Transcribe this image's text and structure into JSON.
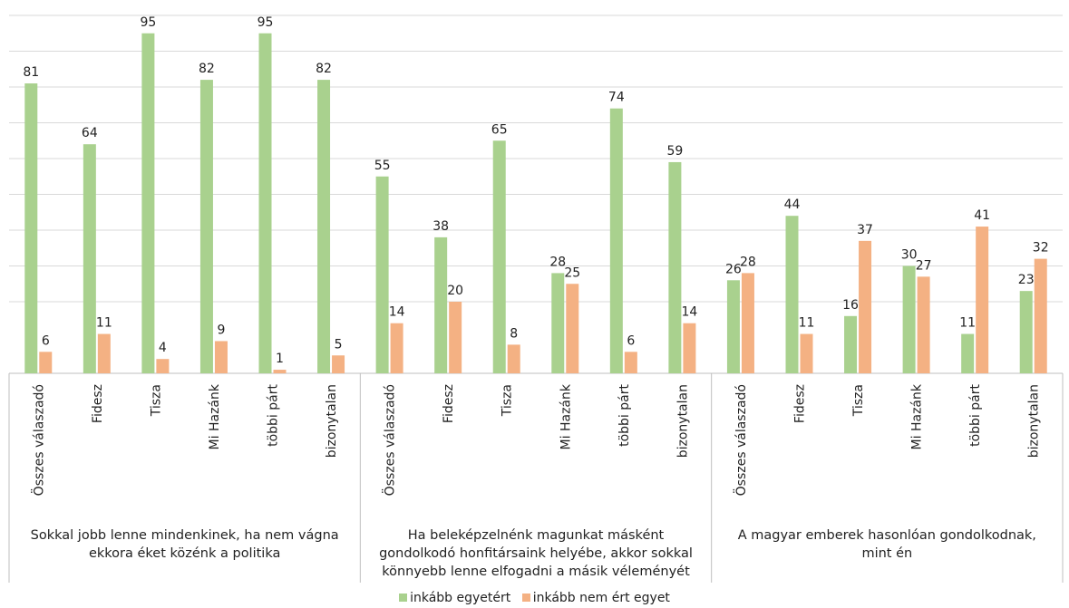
{
  "chart_data": {
    "type": "bar",
    "groups": [
      {
        "label_lines": [
          "Sokkal jobb lenne mindenkinek, ha nem vágna",
          "ekkora éket közénk a politika"
        ],
        "categories": [
          "Összes válaszadó",
          "Fidesz",
          "Tisza",
          "Mi Hazánk",
          "többi párt",
          "bizonytalan"
        ]
      },
      {
        "label_lines": [
          "Ha beleképzelnénk magunkat másként",
          "gondolkodó honfitársaink helyébe, akkor sokkal",
          "könnyebb lenne elfogadni a másik véleményét"
        ],
        "categories": [
          "Összes válaszadó",
          "Fidesz",
          "Tisza",
          "Mi Hazánk",
          "többi párt",
          "bizonytalan"
        ]
      },
      {
        "label_lines": [
          "A magyar emberek hasonlóan gondolkodnak,",
          "mint én"
        ],
        "categories": [
          "Összes válaszadó",
          "Fidesz",
          "Tisza",
          "Mi Hazánk",
          "többi párt",
          "bizonytalan"
        ]
      }
    ],
    "series": [
      {
        "name": "inkább egyetért",
        "color": "#A9D18E",
        "values": [
          81,
          64,
          95,
          82,
          95,
          82,
          55,
          38,
          65,
          28,
          74,
          59,
          26,
          44,
          16,
          30,
          11,
          23
        ]
      },
      {
        "name": "inkább nem ért egyet",
        "color": "#F4B183",
        "values": [
          6,
          11,
          4,
          9,
          1,
          5,
          14,
          20,
          8,
          25,
          6,
          14,
          28,
          11,
          37,
          27,
          41,
          32
        ]
      }
    ],
    "ylim": [
      0,
      100
    ],
    "grid": true,
    "legend": "bottom-center"
  }
}
